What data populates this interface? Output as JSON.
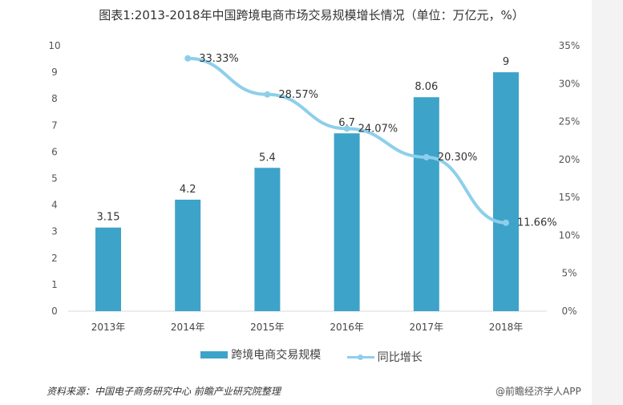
{
  "chart_data": {
    "type": "bar+line",
    "title": "图表1:2013-2018年中国跨境电商市场交易规模增长情况（单位：万亿元，%）",
    "categories": [
      "2013年",
      "2014年",
      "2015年",
      "2016年",
      "2017年",
      "2018年"
    ],
    "series": [
      {
        "name": "跨境电商交易规模",
        "type": "bar",
        "axis": "left",
        "values": [
          3.15,
          4.2,
          5.4,
          6.7,
          8.06,
          9
        ],
        "labels": [
          "3.15",
          "4.2",
          "5.4",
          "6.7",
          "8.06",
          "9"
        ],
        "color": "#3da3c9"
      },
      {
        "name": "同比增长",
        "type": "line",
        "axis": "right",
        "values": [
          null,
          33.33,
          28.57,
          24.07,
          20.3,
          11.66
        ],
        "labels": [
          "",
          "33.33%",
          "28.57%",
          "24.07%",
          "20.30%",
          "11.66%"
        ],
        "color": "#8dcfeb"
      }
    ],
    "left_axis": {
      "ylim": [
        0,
        10
      ],
      "ticks": [
        "0",
        "1",
        "2",
        "3",
        "4",
        "5",
        "6",
        "7",
        "8",
        "9",
        "10"
      ]
    },
    "right_axis": {
      "ylim": [
        0,
        35
      ],
      "ticks": [
        "0%",
        "5%",
        "10%",
        "15%",
        "20%",
        "25%",
        "30%",
        "35%"
      ]
    },
    "grid": false,
    "legend": "bottom"
  },
  "source": "资料来源：中国电子商务研究中心 前瞻产业研究院整理",
  "credit": "@前瞻经济学人APP"
}
